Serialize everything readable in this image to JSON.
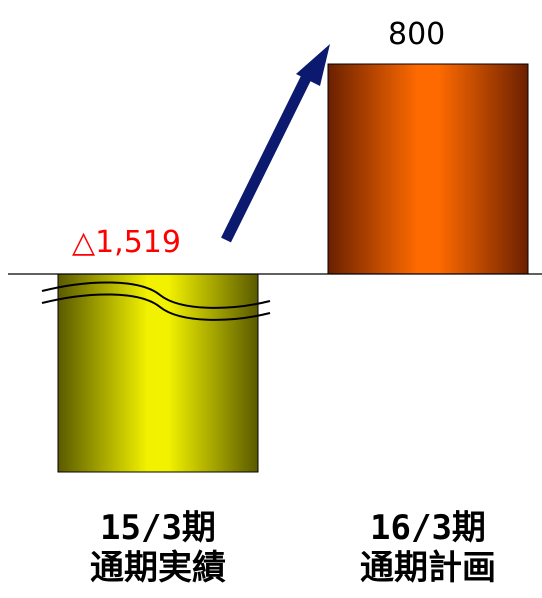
{
  "chart_data": {
    "type": "bar",
    "categories": [
      {
        "period": "15/3期",
        "label": "通期実績"
      },
      {
        "period": "16/3期",
        "label": "通期計画"
      }
    ],
    "values": [
      -1519,
      800
    ],
    "value_labels": [
      "△1,519",
      "800"
    ],
    "axis_broken": true,
    "grid": false,
    "legend": "none",
    "colors": {
      "bar_negative": "#e6e600",
      "bar_positive": "#ff6a00",
      "label_negative": "#ff0000",
      "label_positive": "#000000",
      "arrow": "#0b1a6e",
      "axis": "#000000"
    }
  }
}
